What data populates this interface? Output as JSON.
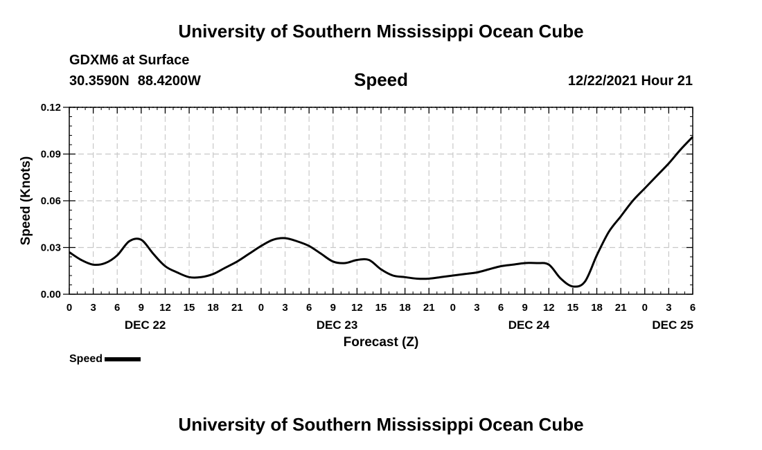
{
  "page": {
    "title": "University of Southern Mississippi Ocean Cube",
    "station": "GDXM6 at Surface",
    "lat": "30.3590N",
    "lon": "88.4200W",
    "variable": "Speed",
    "datetime": "12/22/2021 Hour 21",
    "footer_title": "University of Southern Mississippi Ocean Cube"
  },
  "chart_data": {
    "type": "line",
    "title": "Speed",
    "xlabel": "Forecast (Z)",
    "ylabel": "Speed (Knots)",
    "ylim": [
      0,
      0.12
    ],
    "yticks": [
      0.0,
      0.03,
      0.06,
      0.09,
      0.12
    ],
    "ytick_labels": [
      "0.00",
      "0.03",
      "0.06",
      "0.09",
      "0.12"
    ],
    "xlim": [
      0,
      78
    ],
    "x_unit": "forecast hours from Dec 22 00Z",
    "xtick_hours": [
      0,
      3,
      6,
      9,
      12,
      15,
      18,
      21,
      24,
      27,
      30,
      33,
      36,
      39,
      42,
      45,
      48,
      51,
      54,
      57,
      60,
      63,
      66,
      69,
      72,
      75,
      78
    ],
    "xtick_labels": [
      "0",
      "3",
      "6",
      "9",
      "12",
      "15",
      "18",
      "21",
      "0",
      "3",
      "6",
      "9",
      "12",
      "15",
      "18",
      "21",
      "0",
      "3",
      "6",
      "9",
      "12",
      "15",
      "18",
      "21",
      "0",
      "3",
      "6"
    ],
    "date_labels": [
      {
        "label": "DEC 22",
        "hour": 9.5
      },
      {
        "label": "DEC 23",
        "hour": 33.5
      },
      {
        "label": "DEC 24",
        "hour": 57.5
      },
      {
        "label": "DEC 25",
        "hour": 75.5
      }
    ],
    "grid": true,
    "legend": {
      "position": "bottom-left",
      "label": "Speed"
    },
    "series": [
      {
        "name": "Speed",
        "color": "#000000",
        "x": [
          0,
          1.5,
          3,
          4.5,
          6,
          7.5,
          9,
          10.5,
          12,
          13.5,
          15,
          16.5,
          18,
          19.5,
          21,
          22.5,
          24,
          25.5,
          27,
          28.5,
          30,
          31.5,
          33,
          34.5,
          36,
          37.5,
          39,
          40.5,
          42,
          43.5,
          45,
          46.5,
          48,
          49.5,
          51,
          52.5,
          54,
          55.5,
          57,
          58.5,
          60,
          61.5,
          63,
          64.5,
          66,
          67.5,
          69,
          70.5,
          72,
          73.5,
          75,
          76.5,
          78
        ],
        "values": [
          0.027,
          0.022,
          0.019,
          0.02,
          0.025,
          0.034,
          0.035,
          0.026,
          0.018,
          0.014,
          0.011,
          0.011,
          0.013,
          0.017,
          0.021,
          0.026,
          0.031,
          0.035,
          0.036,
          0.034,
          0.031,
          0.026,
          0.021,
          0.02,
          0.022,
          0.022,
          0.016,
          0.012,
          0.011,
          0.01,
          0.01,
          0.011,
          0.012,
          0.013,
          0.014,
          0.016,
          0.018,
          0.019,
          0.02,
          0.02,
          0.019,
          0.01,
          0.005,
          0.008,
          0.025,
          0.04,
          0.05,
          0.06,
          0.068,
          0.076,
          0.084,
          0.093,
          0.101
        ]
      }
    ]
  }
}
